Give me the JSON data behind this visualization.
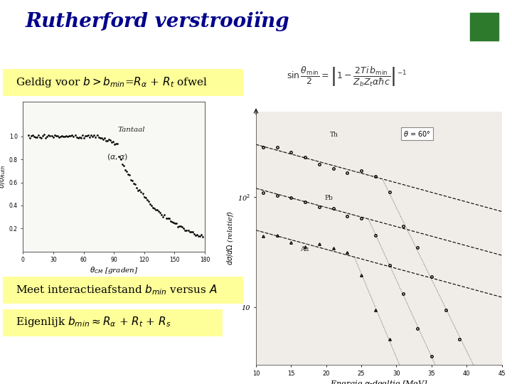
{
  "title": "Rutherford verstrooiïng",
  "title_color": "#00008B",
  "title_fontsize": 20,
  "background_color": "#ffffff",
  "green_box_color": "#2D7A2D",
  "text1": "Geldig voor $b > b_{min}$=$R_{\\alpha}$ + $R_t$ ofwel",
  "text1_bg": "#FFFF99",
  "text1_fontsize": 11,
  "text2": "Meet interactieafstand $b_{min}$ versus $A$",
  "text2_bg": "#FFFF99",
  "text2_fontsize": 11,
  "text3": "Eigenlijk $b_{min}\\approx R_{\\alpha}$ + $R_t$ + $R_s$",
  "text3_bg": "#FFFF99",
  "text3_fontsize": 11
}
